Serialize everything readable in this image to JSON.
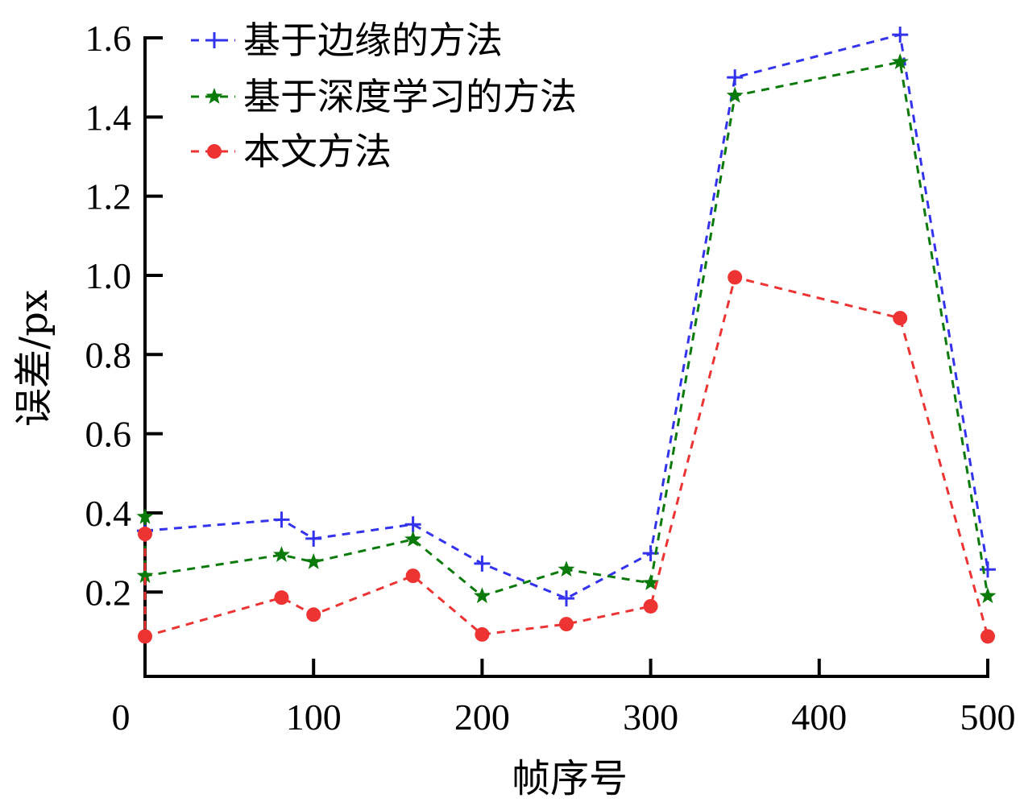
{
  "chart_data": {
    "type": "line",
    "title": "",
    "xlabel": "帧序号",
    "ylabel": "误差/px",
    "xlim": [
      0,
      500
    ],
    "ylim": [
      -0.013,
      1.6
    ],
    "xticks": [
      0,
      100,
      200,
      300,
      400,
      500
    ],
    "xtick_labels": [
      "0",
      "100",
      "200",
      "300",
      "400",
      "500"
    ],
    "yticks": [
      0.2,
      0.4,
      0.6,
      0.8,
      1.0,
      1.2,
      1.4,
      1.6
    ],
    "ytick_labels": [
      "0.2",
      "0.4",
      "0.6",
      "0.8",
      "1.0",
      "1.2",
      "1.4",
      "1.6"
    ],
    "grid": false,
    "legend_position": "top-left",
    "series": [
      {
        "name": "基于边缘的方法",
        "color": "#3333ee",
        "marker": "plus",
        "line_style": "dashed",
        "points": [
          [
            0,
            0.355
          ],
          [
            81,
            0.383
          ],
          [
            100,
            0.335
          ],
          [
            159,
            0.371
          ],
          [
            200,
            0.272
          ],
          [
            250,
            0.184
          ],
          [
            300,
            0.298
          ],
          [
            350,
            1.5
          ],
          [
            448,
            1.608
          ],
          [
            500,
            0.257
          ]
        ]
      },
      {
        "name": "基于深度学习的方法",
        "color": "#0a7a0a",
        "marker": "star",
        "line_style": "dashed",
        "points": [
          [
            0,
            0.39
          ],
          [
            0,
            0.241
          ],
          [
            81,
            0.294
          ],
          [
            100,
            0.276
          ],
          [
            159,
            0.333
          ],
          [
            200,
            0.19
          ],
          [
            250,
            0.257
          ],
          [
            300,
            0.223
          ],
          [
            350,
            1.454
          ],
          [
            448,
            1.539
          ],
          [
            500,
            0.19
          ]
        ]
      },
      {
        "name": "本文方法",
        "color": "#ee3333",
        "marker": "circle",
        "line_style": "dashed",
        "points": [
          [
            0,
            0.347
          ],
          [
            0,
            0.088
          ],
          [
            81,
            0.186
          ],
          [
            100,
            0.143
          ],
          [
            159,
            0.241
          ],
          [
            200,
            0.093
          ],
          [
            250,
            0.119
          ],
          [
            300,
            0.164
          ],
          [
            350,
            0.995
          ],
          [
            448,
            0.892
          ],
          [
            500,
            0.088
          ]
        ]
      }
    ]
  }
}
